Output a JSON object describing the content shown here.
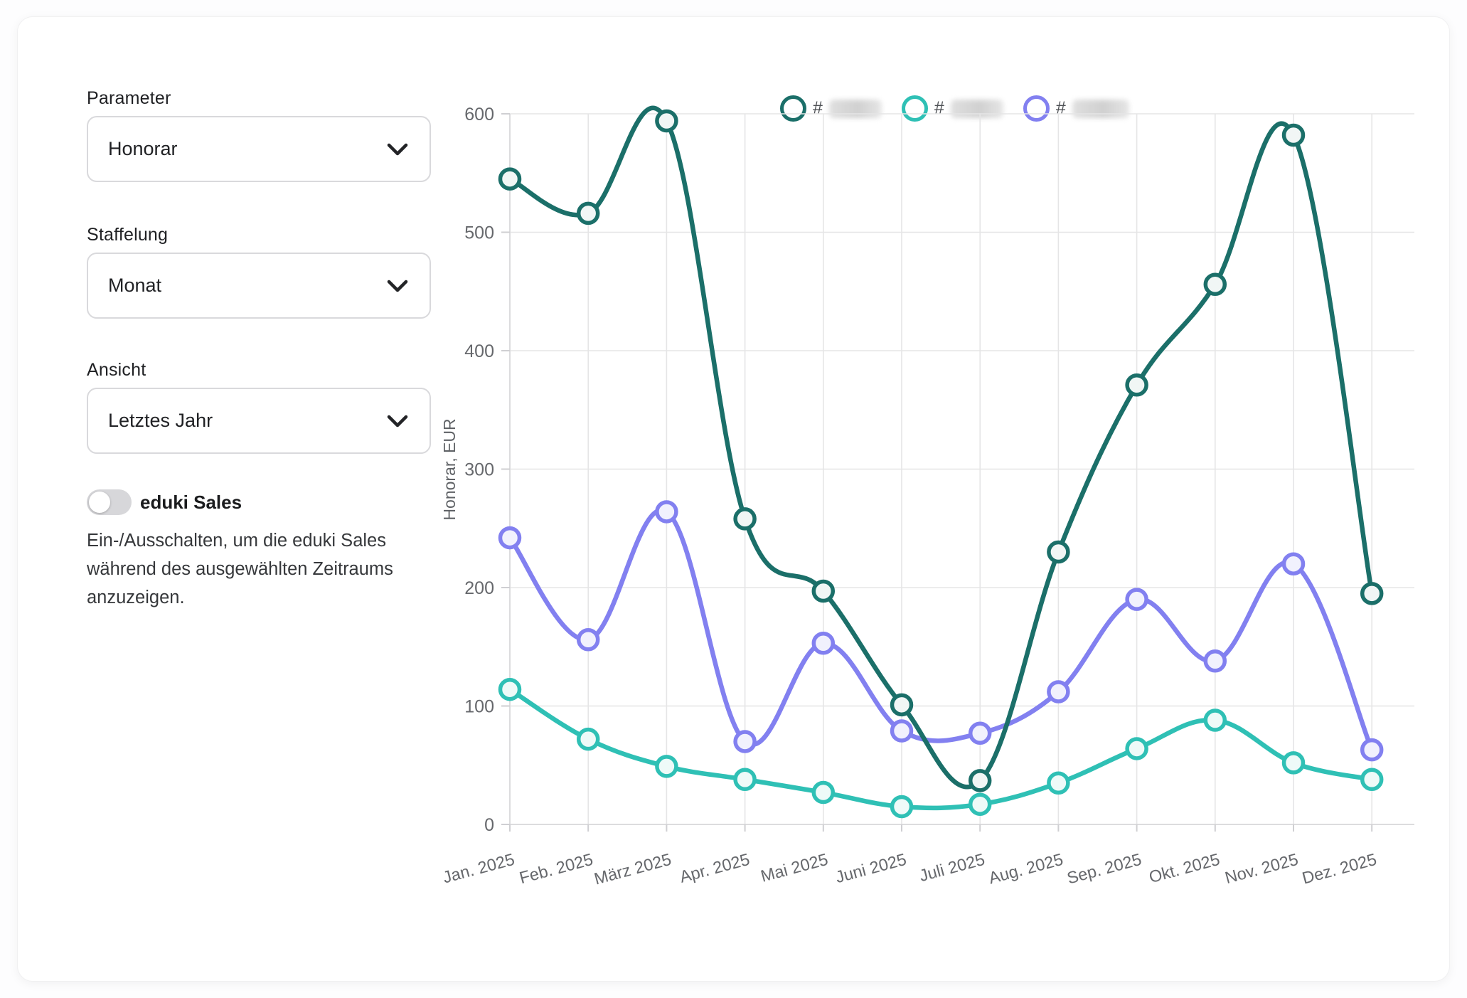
{
  "sidebar": {
    "fields": [
      {
        "label": "Parameter",
        "value": "Honorar"
      },
      {
        "label": "Staffelung",
        "value": "Monat"
      },
      {
        "label": "Ansicht",
        "value": "Letztes Jahr"
      }
    ],
    "toggle": {
      "label": "eduki Sales",
      "state": "off",
      "description": "Ein-/Ausschalten, um die eduki Sales während des ausgewählten Zeitraums anzuzeigen."
    }
  },
  "legend": {
    "items": [
      {
        "hash": "#",
        "redacted": true,
        "color": "#1b6f69"
      },
      {
        "hash": "#",
        "redacted": true,
        "color": "#2fc0b5"
      },
      {
        "hash": "#",
        "redacted": true,
        "color": "#8280f0"
      }
    ]
  },
  "chart_data": {
    "type": "line",
    "title": "",
    "xlabel": "",
    "ylabel": "Honorar, EUR",
    "ylim": [
      0,
      600
    ],
    "yticks": [
      0,
      100,
      200,
      300,
      400,
      500,
      600
    ],
    "grid": true,
    "legend_position": "top",
    "categories": [
      "Jan. 2025",
      "Feb. 2025",
      "März 2025",
      "Apr. 2025",
      "Mai 2025",
      "Juni 2025",
      "Juli 2025",
      "Aug. 2025",
      "Sep. 2025",
      "Okt. 2025",
      "Nov. 2025",
      "Dez. 2025"
    ],
    "series": [
      {
        "name": "# (redacted)",
        "color": "#1b6f69",
        "marker_fill": "#f1f6f5",
        "values": [
          545,
          516,
          594,
          258,
          197,
          101,
          37,
          230,
          371,
          456,
          582,
          195
        ]
      },
      {
        "name": "# (redacted)",
        "color": "#2fc0b5",
        "marker_fill": "#eefaf8",
        "values": [
          114,
          72,
          49,
          38,
          27,
          15,
          17,
          35,
          64,
          88,
          52,
          38
        ]
      },
      {
        "name": "# (redacted)",
        "color": "#8280f0",
        "marker_fill": "#f1f1fd",
        "values": [
          242,
          156,
          264,
          70,
          153,
          79,
          77,
          112,
          190,
          138,
          220,
          63
        ]
      }
    ]
  },
  "style": {
    "grid_color": "#e5e5e6",
    "axis_color": "#dcdcde",
    "tick_color": "#cfcfd2",
    "tick_label_color": "#66686c",
    "axis_title_color": "#5f6266"
  }
}
